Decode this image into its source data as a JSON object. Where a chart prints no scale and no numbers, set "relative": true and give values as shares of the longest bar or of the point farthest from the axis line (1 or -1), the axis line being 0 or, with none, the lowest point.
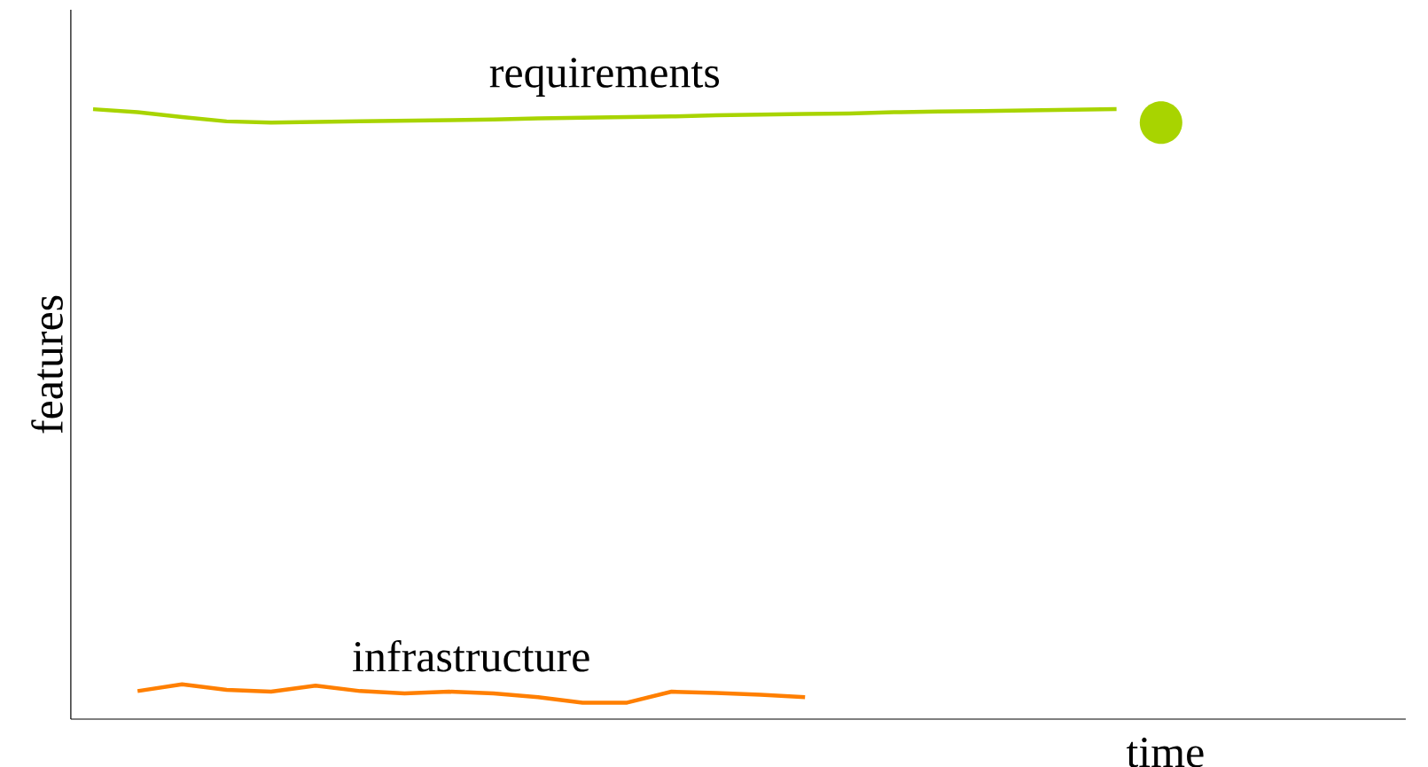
{
  "chart_data": {
    "type": "line",
    "relative": true,
    "xlabel": "time",
    "ylabel": "features",
    "categories": [
      null,
      null,
      null,
      null,
      null,
      null,
      null,
      null,
      null,
      null,
      null,
      null,
      null,
      null,
      null,
      null,
      null,
      null,
      null,
      null,
      null,
      null,
      null,
      null,
      null,
      null,
      null,
      null,
      null,
      null
    ],
    "series": [
      {
        "name": "requirements",
        "color": "#a8d400",
        "values": [
          1.0,
          0.995,
          0.987,
          0.98,
          0.978,
          0.979,
          0.98,
          0.981,
          0.982,
          0.983,
          0.985,
          0.986,
          0.987,
          0.988,
          0.99,
          0.991,
          0.992,
          0.993,
          0.995,
          0.996,
          0.997,
          0.998,
          0.999,
          1.0,
          null,
          null,
          null,
          null,
          null,
          null
        ]
      },
      {
        "name": "infrastructure",
        "color": "#ff7f00",
        "values": [
          null,
          0.046,
          0.057,
          0.048,
          0.045,
          0.055,
          0.046,
          0.042,
          0.045,
          0.042,
          0.036,
          0.027,
          0.027,
          0.045,
          0.043,
          0.04,
          0.036,
          null,
          null,
          null,
          null,
          null,
          null,
          null,
          null,
          null,
          null,
          null,
          null,
          null
        ]
      }
    ]
  }
}
